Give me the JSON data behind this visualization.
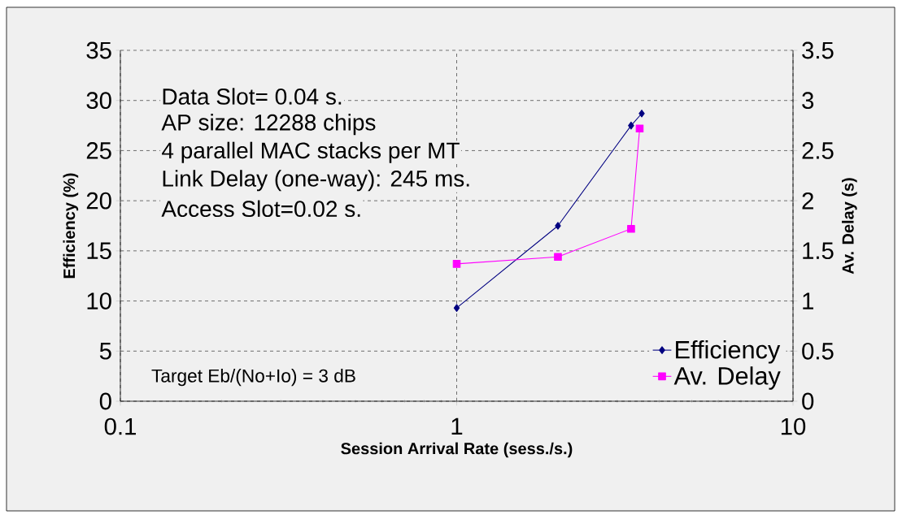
{
  "chart_data": {
    "type": "line",
    "xlabel": "Session Arrival Rate (sess./s.)",
    "ylabel": "Efficiency (%)",
    "y2label": "Av. Delay (s)",
    "log": "x",
    "grid": true,
    "legend": "bottom right",
    "line_style": "solid",
    "xlim": [
      0.1,
      10
    ],
    "xticks": [
      0.1,
      1,
      10
    ],
    "ylim": [
      0,
      35
    ],
    "yticks": [
      0,
      5,
      10,
      15,
      20,
      25,
      30,
      35
    ],
    "y2lim": [
      0,
      3.5
    ],
    "y2ticks": [
      0,
      0.5,
      1,
      1.5,
      2,
      2.5,
      3,
      3.5
    ],
    "series": [
      {
        "name": "Efficiency",
        "color": "#000080",
        "marker": "diamond",
        "x": [
          1,
          2,
          3.3,
          3.55
        ],
        "values": [
          9.3,
          17.5,
          27.5,
          28.7
        ]
      },
      {
        "name": "Av. Delay",
        "color": "#ff00ff",
        "marker": "square",
        "axis": "y2",
        "x": [
          1,
          2,
          3.3,
          3.5
        ],
        "values": [
          1.37,
          1.44,
          1.72,
          2.72
        ]
      }
    ],
    "annotations": [
      "Data Slot= 0.04 s.",
      "AP size: 12288 chips",
      "4 parallel MAC stacks per MT",
      "Link Delay (one-way): 245 ms.",
      "Access Slot=0.02 s.",
      "Target Eb/(No+Io) = 3 dB"
    ]
  }
}
